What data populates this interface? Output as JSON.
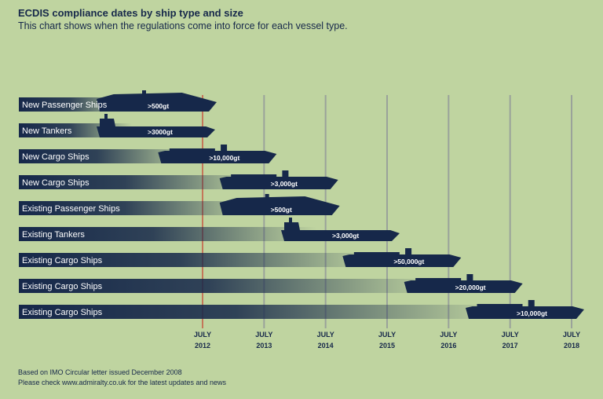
{
  "header": {
    "title": "ECDIS compliance dates by ship type and size",
    "subtitle": "This chart shows when the regulations come into force for each vessel type."
  },
  "footer": {
    "line1": "Based on IMO Circular letter issued December 2008",
    "line2": "Please check www.admiralty.co.uk for the latest updates and news"
  },
  "colors": {
    "background": "#bfd4a0",
    "navy": "#16284a",
    "gridline": "#9aa29a",
    "highlight_line": "#c8392b"
  },
  "chart_data": {
    "type": "timeline",
    "x_ticks": [
      "JULY 2012",
      "JULY 2013",
      "JULY 2014",
      "JULY 2015",
      "JULY 2016",
      "JULY 2017",
      "JULY 2018"
    ],
    "xlim": [
      2012,
      2018
    ],
    "highlighted_tick": "JULY 2012",
    "grid": true,
    "rows": [
      {
        "label": "New Passenger Ships",
        "size": ">500gt",
        "deadline": 2012.0,
        "ship": "passenger"
      },
      {
        "label": "New Tankers",
        "size": ">3000gt",
        "deadline": 2012.0,
        "ship": "tanker"
      },
      {
        "label": "New Cargo Ships",
        "size": ">10,000gt",
        "deadline": 2013.0,
        "ship": "cargo"
      },
      {
        "label": "New Cargo Ships",
        "size": ">3,000gt",
        "deadline": 2014.0,
        "ship": "cargo"
      },
      {
        "label": "Existing Passenger Ships",
        "size": ">500gt",
        "deadline": 2014.0,
        "ship": "passenger"
      },
      {
        "label": "Existing Tankers",
        "size": ">3,000gt",
        "deadline": 2015.0,
        "ship": "tanker"
      },
      {
        "label": "Existing Cargo Ships",
        "size": ">50,000gt",
        "deadline": 2016.0,
        "ship": "cargo"
      },
      {
        "label": "Existing Cargo Ships",
        "size": ">20,000gt",
        "deadline": 2017.0,
        "ship": "cargo"
      },
      {
        "label": "Existing Cargo Ships",
        "size": ">10,000gt",
        "deadline": 2018.0,
        "ship": "cargo"
      }
    ]
  }
}
